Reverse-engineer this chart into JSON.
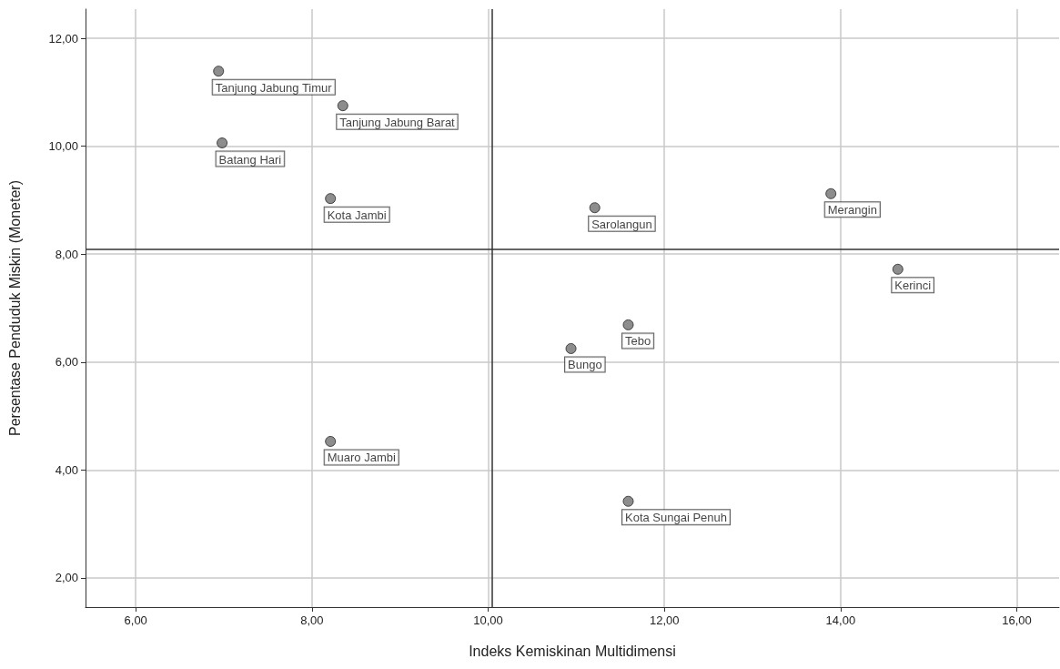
{
  "chart_data": {
    "type": "scatter",
    "xlabel": "Indeks Kemiskinan Multidimensi",
    "ylabel": "Persentase Penduduk Miskin (Moneter)",
    "x": [
      6.94,
      8.35,
      6.98,
      8.21,
      11.21,
      13.89,
      14.65,
      11.59,
      10.94,
      8.21,
      11.59
    ],
    "series": [
      {
        "color": "#707070",
        "values": [
          11.39,
          10.75,
          10.06,
          9.03,
          8.86,
          9.12,
          7.72,
          6.69,
          6.25,
          4.53,
          3.42
        ]
      }
    ],
    "annotations": [
      {
        "text": "Tanjung Jabung Timur",
        "x": 6.94,
        "y": 11.39
      },
      {
        "text": "Tanjung Jabung Barat",
        "x": 8.35,
        "y": 10.75
      },
      {
        "text": "Batang Hari",
        "x": 6.98,
        "y": 10.06
      },
      {
        "text": "Kota Jambi",
        "x": 8.21,
        "y": 9.03
      },
      {
        "text": "Sarolangun",
        "x": 11.21,
        "y": 8.86
      },
      {
        "text": "Merangin",
        "x": 13.89,
        "y": 9.12
      },
      {
        "text": "Kerinci",
        "x": 14.65,
        "y": 7.72
      },
      {
        "text": "Tebo",
        "x": 11.59,
        "y": 6.69
      },
      {
        "text": "Bungo",
        "x": 10.94,
        "y": 6.25
      },
      {
        "text": "Muaro Jambi",
        "x": 8.21,
        "y": 4.53
      },
      {
        "text": "Kota Sungai Penuh",
        "x": 11.59,
        "y": 3.42
      }
    ],
    "xlim": [
      5.43,
      16.48
    ],
    "ylim": [
      1.46,
      12.54
    ],
    "xticks": [
      {
        "value": 6,
        "label": "6,00"
      },
      {
        "value": 8,
        "label": "8,00"
      },
      {
        "value": 10,
        "label": "10,00"
      },
      {
        "value": 12,
        "label": "12,00"
      },
      {
        "value": 14,
        "label": "14,00"
      },
      {
        "value": 16,
        "label": "16,00"
      }
    ],
    "yticks": [
      {
        "value": 2,
        "label": "2,00"
      },
      {
        "value": 4,
        "label": "4,00"
      },
      {
        "value": 6,
        "label": "6,00"
      },
      {
        "value": 8,
        "label": "8,00"
      },
      {
        "value": 10,
        "label": "10,00"
      },
      {
        "value": 12,
        "label": "12,00"
      }
    ],
    "ref_lines": [
      {
        "axis": "x",
        "value": 10.04,
        "color": "#333333"
      },
      {
        "axis": "y",
        "value": 8.1,
        "color": "#333333"
      }
    ],
    "grid": true,
    "marker": "circle"
  }
}
